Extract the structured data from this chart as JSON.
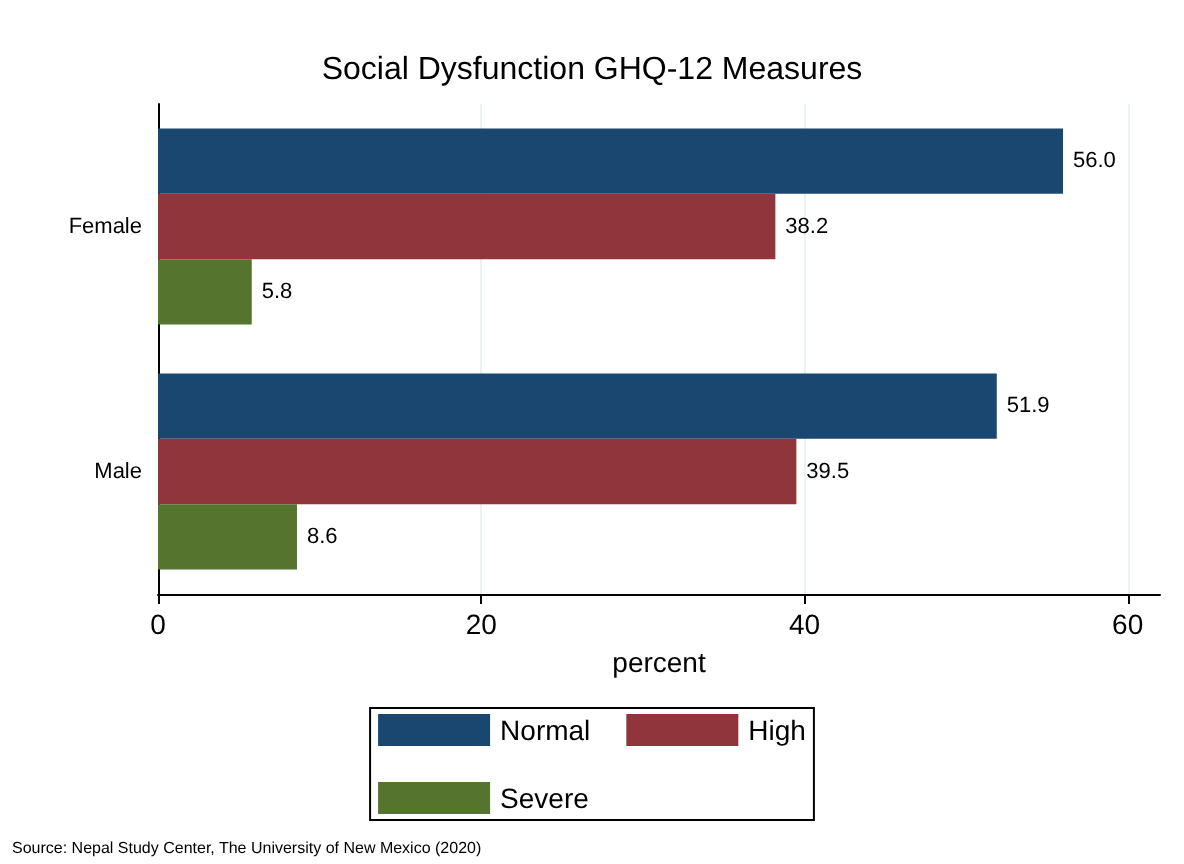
{
  "chart_data": {
    "type": "bar",
    "orientation": "horizontal",
    "title": "Social Dysfunction GHQ-12 Measures",
    "xlabel": "percent",
    "categories": [
      "Female",
      "Male"
    ],
    "series": [
      {
        "name": "Normal",
        "color": "#1a476f",
        "values": [
          56.0,
          51.9
        ],
        "value_labels": [
          "56.0",
          "51.9"
        ]
      },
      {
        "name": "High",
        "color": "#90353b",
        "values": [
          38.2,
          39.5
        ],
        "value_labels": [
          "38.2",
          "39.5"
        ]
      },
      {
        "name": "Severe",
        "color": "#55752f",
        "values": [
          5.8,
          8.6
        ],
        "value_labels": [
          "5.8",
          "8.6"
        ]
      }
    ],
    "xlim": [
      0,
      62
    ],
    "xticks": [
      0,
      20,
      40,
      60
    ],
    "grid": "x",
    "legend": "bottom",
    "annotations": [
      "Source: Nepal Study Center, The University of New Mexico (2020)"
    ]
  }
}
